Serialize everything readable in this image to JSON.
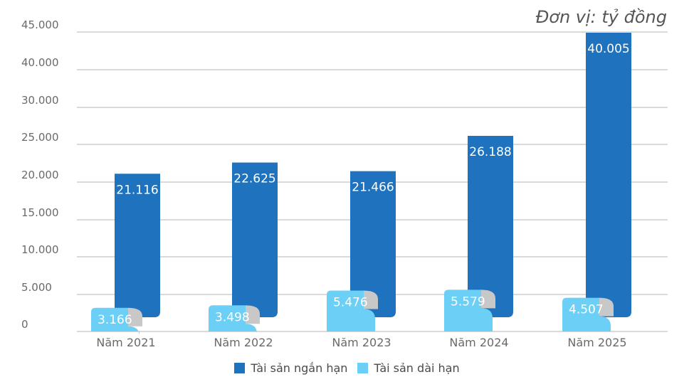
{
  "chart_data": {
    "type": "bar",
    "unit_label": "Đơn vị: tỷ đồng",
    "categories": [
      "Năm 2021",
      "Năm 2022",
      "Năm 2023",
      "Năm 2024",
      "Năm 2025"
    ],
    "series": [
      {
        "name": "Tài sản ngắn hạn",
        "values": [
          21116,
          22625,
          21466,
          26188,
          40005
        ],
        "labels": [
          "21.116",
          "22.625",
          "21.466",
          "26.188",
          "40.005"
        ],
        "color": "#1f72bd"
      },
      {
        "name": "Tài sản dài hạn",
        "values": [
          3166,
          3498,
          5476,
          5579,
          4507
        ],
        "labels": [
          "3.166",
          "3.498",
          "5.476",
          "5.579",
          "4.507"
        ],
        "color": "#6ccff5"
      }
    ],
    "y_ticks": [
      "0",
      "5.000",
      "10.000",
      "15.000",
      "20.000",
      "25.000",
      "30.000",
      "40.000",
      "45.000"
    ],
    "grid": true,
    "legend_position": "bottom"
  }
}
